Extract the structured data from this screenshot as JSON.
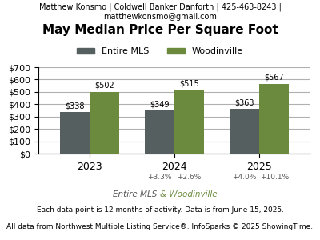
{
  "chart_data": {
    "type": "bar",
    "title": "May Median Price Per Square Foot",
    "categories": [
      "2023",
      "2024",
      "2025"
    ],
    "series": [
      {
        "name": "Entire MLS",
        "color": "#555f5f",
        "values": [
          338,
          349,
          363
        ],
        "value_labels": [
          "$338",
          "$349",
          "$363"
        ],
        "change_labels": [
          null,
          "+3.3%",
          "+4.0%"
        ]
      },
      {
        "name": "Woodinville",
        "color": "#6b8a3e",
        "values": [
          502,
          515,
          567
        ],
        "value_labels": [
          "$502",
          "$515",
          "$567"
        ],
        "change_labels": [
          null,
          "+2.6%",
          "+10.1%"
        ]
      }
    ],
    "ylim": [
      0,
      700
    ],
    "yticks": [
      {
        "value": 0,
        "label": "$0"
      },
      {
        "value": 100,
        "label": "$100"
      },
      {
        "value": 200,
        "label": "$200"
      },
      {
        "value": 300,
        "label": "$300"
      },
      {
        "value": 400,
        "label": "$400"
      },
      {
        "value": 500,
        "label": "$500"
      },
      {
        "value": 600,
        "label": "$600"
      },
      {
        "value": 700,
        "label": "$700"
      }
    ],
    "grid": true,
    "legend": "upper center",
    "data_labels": true,
    "annotations": [
      {
        "text": "Matthew Konsmo | Coldwell Banker Danforth | 425-463-8243 |"
      },
      {
        "text": "matthewkonsmo@gmail.com"
      },
      {
        "parts": [
          {
            "text": "Entire MLS ",
            "color": "#555555"
          },
          {
            "text": "& Woodinville",
            "color": "#6b8a3e"
          }
        ]
      },
      {
        "text": "Each data point is 12 months of activity. Data is from June 15, 2025."
      },
      {
        "text": "All data from Northwest Multiple Listing Service®. InfoSparks © 2025 ShowingTime."
      }
    ]
  }
}
